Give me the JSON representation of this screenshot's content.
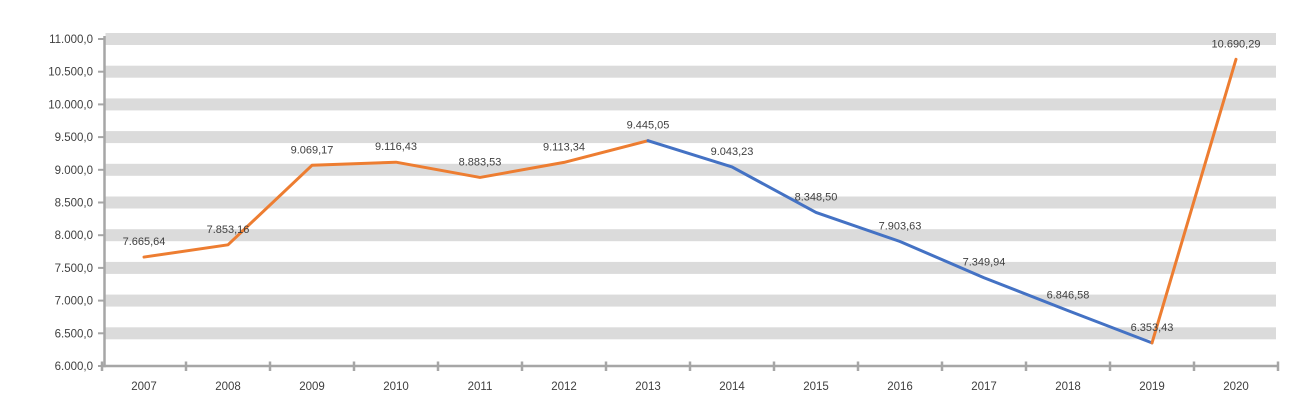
{
  "theme": {
    "background": "#FFFFFF",
    "band_color": "#DBDBDB",
    "axis_color": "#A6A6A6",
    "label_color": "#404040"
  },
  "chart_data": {
    "type": "line",
    "categories": [
      "2007",
      "2008",
      "2009",
      "2010",
      "2011",
      "2012",
      "2013",
      "2014",
      "2015",
      "2016",
      "2017",
      "2018",
      "2019",
      "2020"
    ],
    "values": [
      7665.64,
      7853.16,
      9069.17,
      9116.43,
      8883.53,
      9113.34,
      9445.05,
      9043.23,
      8348.5,
      7903.63,
      7349.94,
      6846.58,
      6353.43,
      10690.29
    ],
    "data_labels": [
      "7.665,64",
      "7.853,16",
      "9.069,17",
      "9.116,43",
      "8.883,53",
      "9.113,34",
      "9.445,05",
      "9.043,23",
      "8.348,50",
      "7.903,63",
      "7.349,94",
      "6.846,58",
      "6.353,43",
      "10.690,29"
    ],
    "segments": [
      {
        "name": "orange-2007-2013",
        "color": "#ED7D31",
        "from_index": 0,
        "to_index": 6
      },
      {
        "name": "blue-2013-2019",
        "color": "#4472C4",
        "from_index": 6,
        "to_index": 12
      },
      {
        "name": "orange-2019-2020",
        "color": "#ED7D31",
        "from_index": 12,
        "to_index": 13
      }
    ],
    "ylim": [
      6000,
      11000
    ],
    "ytick_step": 500,
    "ytick_labels": [
      "6.000,0",
      "6.500,0",
      "7.000,0",
      "7.500,0",
      "8.000,0",
      "8.500,0",
      "9.000,0",
      "9.500,0",
      "10.000,0",
      "10.500,0",
      "11.000,0"
    ],
    "grid": "horizontal-thick-bands",
    "legend": "none",
    "markers": "none"
  }
}
